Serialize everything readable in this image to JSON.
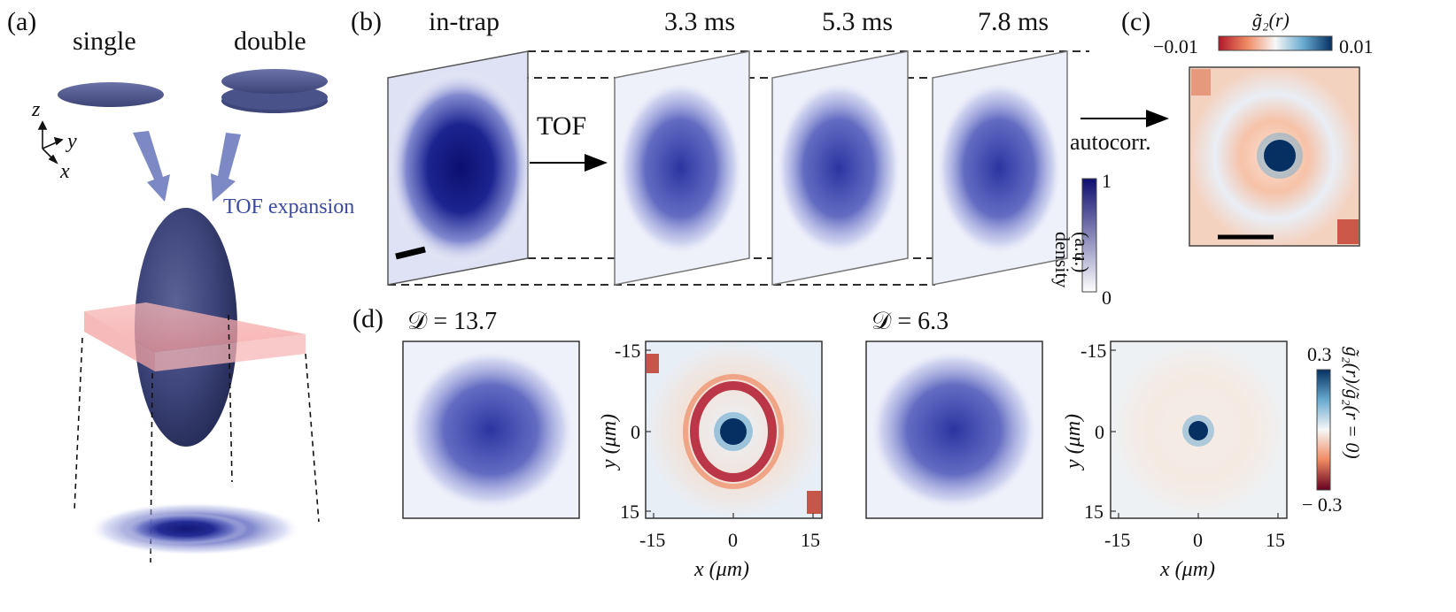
{
  "panel_labels": {
    "a": "(a)",
    "b": "(b)",
    "c": "(c)",
    "d": "(d)"
  },
  "panel_a": {
    "single": "single",
    "double": "double",
    "axis_z": "z",
    "axis_y": "y",
    "axis_x": "x",
    "tof_expansion": "TOF expansion"
  },
  "panel_b": {
    "in_trap": "in-trap",
    "t1": "3.3 ms",
    "t2": "5.3 ms",
    "t3": "7.8 ms",
    "tof": "TOF",
    "autocorr": "autocorr.",
    "density_label": "density",
    "density_unit": "(a.u.)",
    "cbar_max": "1",
    "cbar_min": "0"
  },
  "panel_c": {
    "title": "g̃₂(r)",
    "cbar_min": "−0.01",
    "cbar_max": "0.01"
  },
  "panel_d": {
    "d1": "𝒟 = 13.7",
    "d2": "𝒟 = 6.3",
    "ticks": [
      "-15",
      "0",
      "15"
    ],
    "xlabel": "x (μm)",
    "ylabel": "y (μm)",
    "cbar_max": "0.3",
    "cbar_min": "− 0.3",
    "cbar_label": "g̃₂(r)/g̃₂(r = 0)"
  },
  "colors": {
    "accent": "#1a237e",
    "tof_text": "#3b4aa0",
    "red": "#b2182b",
    "blue": "#053061"
  }
}
